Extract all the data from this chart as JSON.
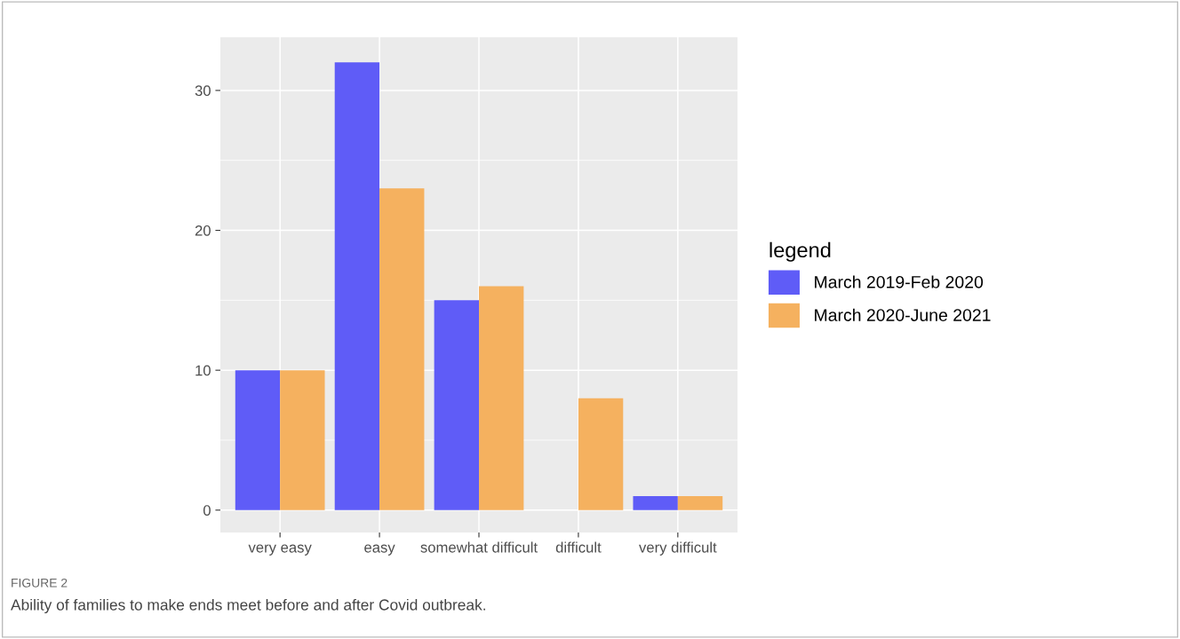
{
  "chart_data": {
    "type": "bar",
    "categories": [
      "very easy",
      "easy",
      "somewhat difficult",
      "difficult",
      "very difficult"
    ],
    "series": [
      {
        "name": "March 2019-Feb 2020",
        "color": "#5f5cf7",
        "values": [
          10,
          32,
          15,
          0,
          1
        ]
      },
      {
        "name": "March 2020-June 2021",
        "color": "#f5b15f",
        "values": [
          10,
          23,
          16,
          8,
          1
        ]
      }
    ],
    "ylim": [
      -1.6,
      33.8
    ],
    "yticks": [
      0,
      {
        "value": 5,
        "label": null
      },
      10,
      {
        "value": 15,
        "label": null
      },
      20,
      {
        "value": 25,
        "label": null
      },
      30
    ],
    "grid": true,
    "legend": "right",
    "legend_title": "legend",
    "annotations": [
      "FIGURE 2",
      "Ability of families to make ends meet before and after Covid outbreak."
    ]
  }
}
